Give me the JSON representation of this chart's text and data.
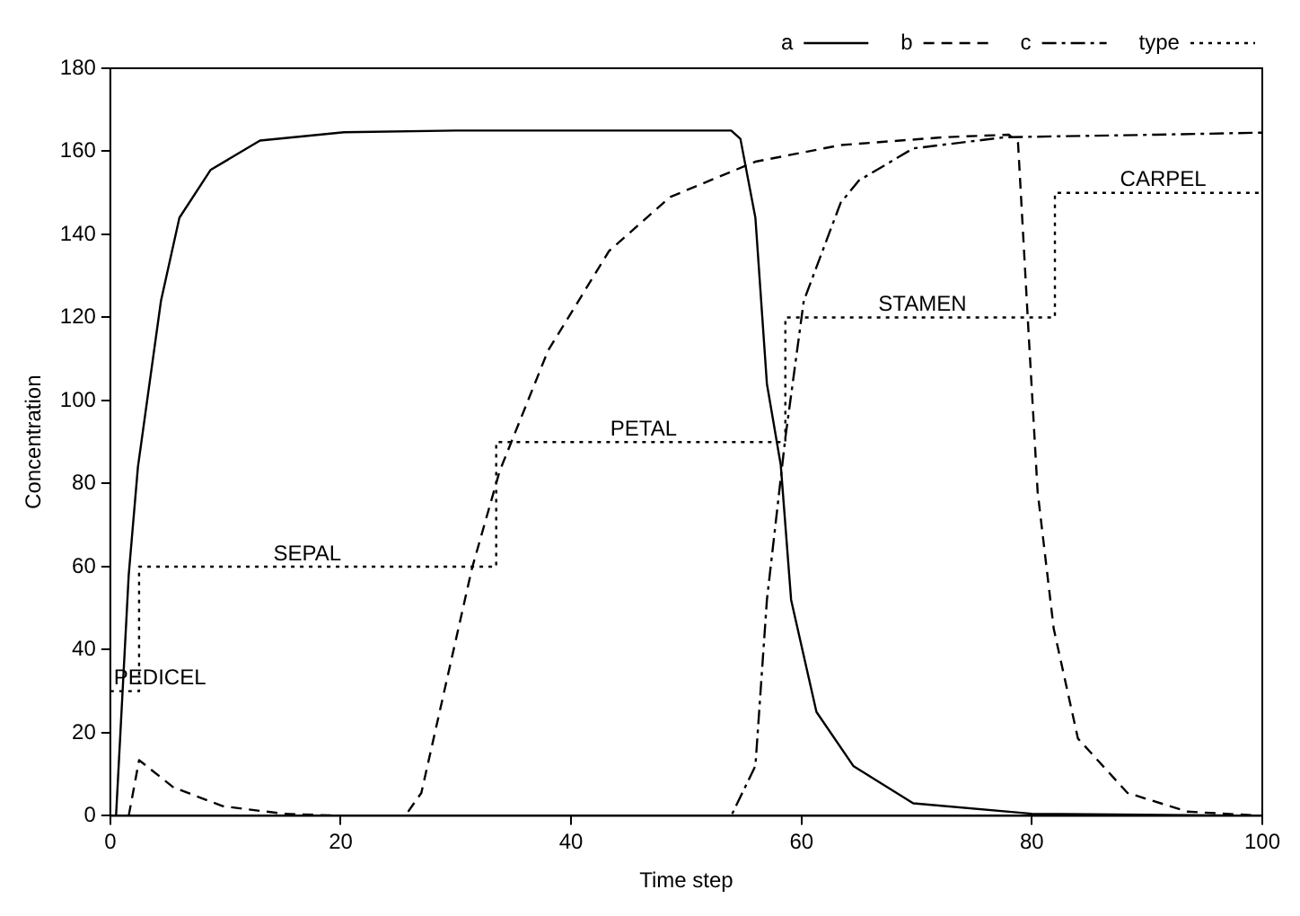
{
  "chart_data": {
    "type": "line",
    "xlabel": "Time step",
    "ylabel": "Concentration",
    "xlim": [
      0,
      100
    ],
    "xticks": [
      0,
      20,
      40,
      60,
      80,
      100
    ],
    "ylim": [
      0,
      180
    ],
    "yticks": [
      0,
      20,
      40,
      60,
      80,
      100,
      120,
      140,
      160,
      180
    ],
    "grid": false,
    "legend": "top right",
    "marker": "none",
    "series": [
      {
        "name": "a",
        "color": "#000000",
        "line_style": "solid",
        "x": [
          0.5,
          1.6,
          2.4,
          4.4,
          6,
          8.7,
          13,
          20.3,
          30,
          40,
          50,
          53.9,
          54.7,
          56,
          57,
          58.2,
          59.1,
          61.3,
          64.5,
          69.7,
          80,
          100
        ],
        "values": [
          0,
          58,
          84,
          124,
          144,
          155.5,
          162.6,
          164.6,
          165,
          165,
          165,
          165,
          163,
          144,
          104,
          84.5,
          52,
          25,
          12,
          3,
          0.5,
          0
        ]
      },
      {
        "name": "b",
        "color": "#000000",
        "line_style": "dashed",
        "x": [
          1.6,
          2.5,
          5.5,
          9.8,
          15,
          20,
          25.6,
          27,
          31.4,
          33.8,
          38,
          43.3,
          48.6,
          56,
          63.4,
          72.4,
          78,
          78.8,
          79.7,
          80.5,
          81.9,
          84,
          88.3,
          93.5,
          100
        ],
        "values": [
          0,
          13.4,
          6.8,
          2.3,
          0.5,
          0,
          0,
          5.5,
          59.6,
          83,
          112,
          136,
          149,
          157.5,
          161.5,
          163.4,
          164,
          162,
          117,
          78,
          45,
          18.6,
          5.5,
          1,
          0
        ]
      },
      {
        "name": "c",
        "color": "#000000",
        "line_style": "dashdot",
        "x": [
          0,
          20,
          40,
          50,
          53.9,
          56,
          57,
          58.6,
          60.2,
          63.4,
          65,
          69.7,
          77.7,
          90.8,
          100
        ],
        "values": [
          0,
          0,
          0,
          0,
          0,
          12,
          52,
          91,
          124,
          147.6,
          153,
          160.7,
          163.4,
          164,
          164.5
        ]
      },
      {
        "name": "type",
        "type": "step",
        "color": "#000000",
        "line_style": "dotted",
        "x": [
          0,
          2.5,
          33.5,
          58.6,
          82,
          100
        ],
        "values": [
          30,
          60,
          90,
          120,
          150,
          150
        ]
      }
    ],
    "annotations": [
      {
        "text": "PEDICEL",
        "x": 1.25,
        "y": 30
      },
      {
        "text": "SEPAL",
        "x": 17.1,
        "y": 60
      },
      {
        "text": "PETAL",
        "x": 46.3,
        "y": 90
      },
      {
        "text": "STAMEN",
        "x": 70.5,
        "y": 120
      },
      {
        "text": "CARPEL",
        "x": 91.4,
        "y": 150
      }
    ]
  }
}
